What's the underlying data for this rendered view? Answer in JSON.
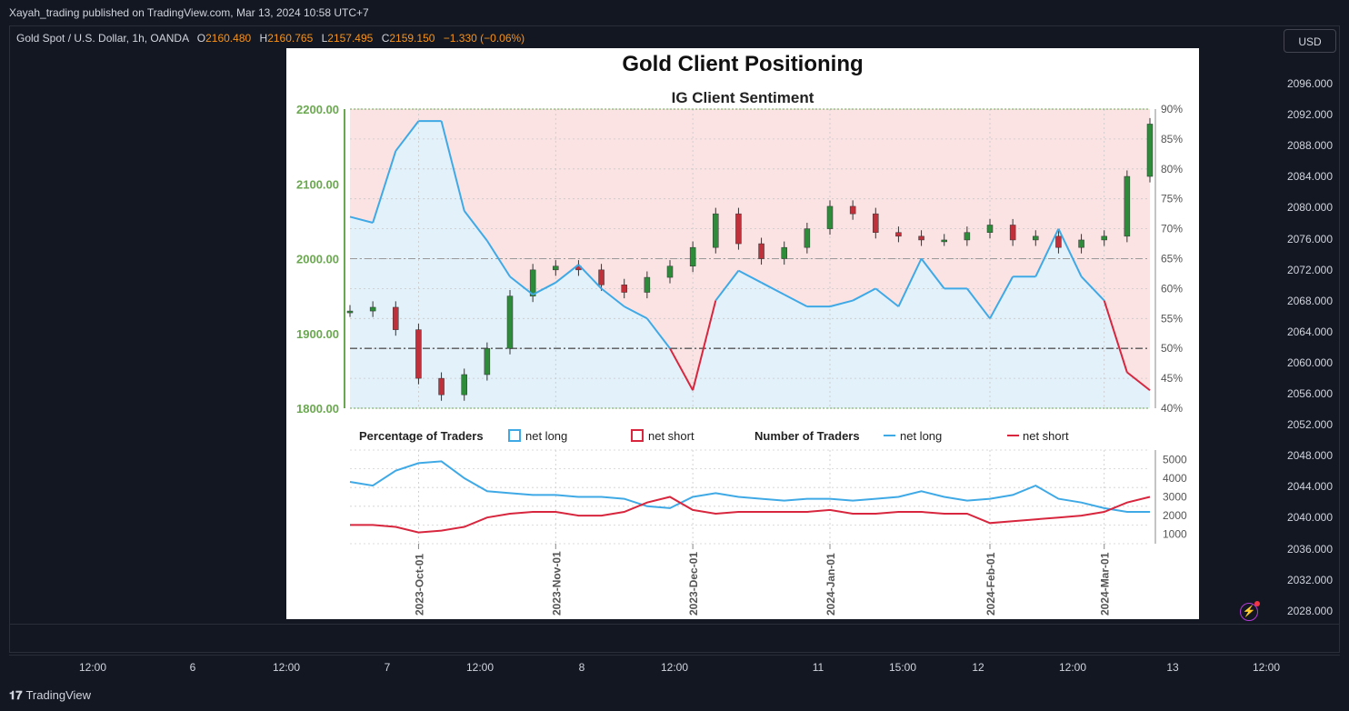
{
  "header": {
    "published": "Xayah_trading published on TradingView.com, Mar 13, 2024 10:58 UTC+7"
  },
  "legend": {
    "symbol": "Gold Spot / U.S. Dollar, 1h, OANDA",
    "o_label": "O",
    "o": "2160.480",
    "h_label": "H",
    "h": "2160.765",
    "l_label": "L",
    "l": "2157.495",
    "c_label": "C",
    "c": "2159.150",
    "change": "−1.330 (−0.06%)"
  },
  "currency": "USD",
  "price_axis": [
    "2096.000",
    "2092.000",
    "2088.000",
    "2084.000",
    "2080.000",
    "2076.000",
    "2072.000",
    "2068.000",
    "2064.000",
    "2060.000",
    "2056.000",
    "2052.000",
    "2048.000",
    "2044.000",
    "2040.000",
    "2036.000",
    "2032.000",
    "2028.000"
  ],
  "time_axis": [
    "12:00",
    "6",
    "12:00",
    "7",
    "12:00",
    "8",
    "12:00",
    "11",
    "15:00",
    "12",
    "12:00",
    "13",
    "12:00"
  ],
  "brand": "TradingView",
  "colors": {
    "accent": "#f7931a",
    "long": "#3fa9e6",
    "short": "#d7263d",
    "bg": "#131722"
  },
  "chart_data": {
    "type": "line",
    "title": "Gold Client Positioning",
    "subtitle": "IG Client Sentiment",
    "x": [
      "2023-09-15",
      "2023-09-20",
      "2023-09-25",
      "2023-09-30",
      "2023-10-05",
      "2023-10-10",
      "2023-10-15",
      "2023-10-20",
      "2023-10-25",
      "2023-10-30",
      "2023-11-05",
      "2023-11-10",
      "2023-11-15",
      "2023-11-20",
      "2023-11-25",
      "2023-11-30",
      "2023-12-05",
      "2023-12-10",
      "2023-12-15",
      "2023-12-20",
      "2023-12-25",
      "2023-12-30",
      "2024-01-05",
      "2024-01-10",
      "2024-01-15",
      "2024-01-20",
      "2024-01-25",
      "2024-01-30",
      "2024-02-05",
      "2024-02-10",
      "2024-02-15",
      "2024-02-20",
      "2024-02-25",
      "2024-03-01",
      "2024-03-05",
      "2024-03-10"
    ],
    "x_tick_labels": [
      "2023-Oct-01",
      "2023-Nov-01",
      "2023-Dec-01",
      "2024-Jan-01",
      "2024-Feb-01",
      "2024-Mar-01"
    ],
    "price": {
      "ylim": [
        1800,
        2200
      ],
      "ticks": [
        "1800.00",
        "1900.00",
        "2000.00",
        "2100.00",
        "2200.00"
      ],
      "values": [
        1930,
        1935,
        1905,
        1840,
        1818,
        1845,
        1880,
        1950,
        1985,
        1990,
        1985,
        1965,
        1955,
        1975,
        1990,
        2015,
        2060,
        2020,
        2000,
        2015,
        2040,
        2070,
        2060,
        2035,
        2030,
        2025,
        2025,
        2035,
        2045,
        2025,
        2030,
        2015,
        2025,
        2030,
        2110,
        2180
      ]
    },
    "pct_long": {
      "name": "net long",
      "ylim": [
        40,
        90
      ],
      "ticks": [
        "40%",
        "45%",
        "50%",
        "55%",
        "60%",
        "65%",
        "70%",
        "75%",
        "80%",
        "85%",
        "90%"
      ],
      "values": [
        72,
        71,
        83,
        88,
        88,
        73,
        68,
        62,
        59,
        61,
        64,
        60,
        57,
        55,
        50,
        43,
        58,
        63,
        61,
        59,
        57,
        57,
        58,
        60,
        57,
        65,
        60,
        60,
        55,
        62,
        62,
        70,
        62,
        58,
        46,
        43
      ]
    },
    "pct_long_legend": "Percentage of Traders",
    "pct_long_series_label": "net long",
    "pct_short_series_label": "net short",
    "traders": {
      "title": "Number of Traders",
      "ylim": [
        500,
        5500
      ],
      "ticks": [
        "1000",
        "2000",
        "3000",
        "4000",
        "5000"
      ],
      "series": [
        {
          "name": "net long",
          "values": [
            3800,
            3600,
            4400,
            4800,
            4900,
            4000,
            3300,
            3200,
            3100,
            3100,
            3000,
            3000,
            2900,
            2500,
            2400,
            3000,
            3200,
            3000,
            2900,
            2800,
            2900,
            2900,
            2800,
            2900,
            3000,
            3300,
            3000,
            2800,
            2900,
            3100,
            3600,
            2900,
            2700,
            2400,
            2200,
            2200
          ]
        },
        {
          "name": "net short",
          "values": [
            1500,
            1500,
            1400,
            1100,
            1200,
            1400,
            1900,
            2100,
            2200,
            2200,
            2000,
            2000,
            2200,
            2700,
            3000,
            2300,
            2100,
            2200,
            2200,
            2200,
            2200,
            2300,
            2100,
            2100,
            2200,
            2200,
            2100,
            2100,
            1600,
            1700,
            1800,
            1900,
            2000,
            2200,
            2700,
            3000
          ]
        }
      ]
    },
    "grid": true,
    "legend_position": "between-panels"
  }
}
